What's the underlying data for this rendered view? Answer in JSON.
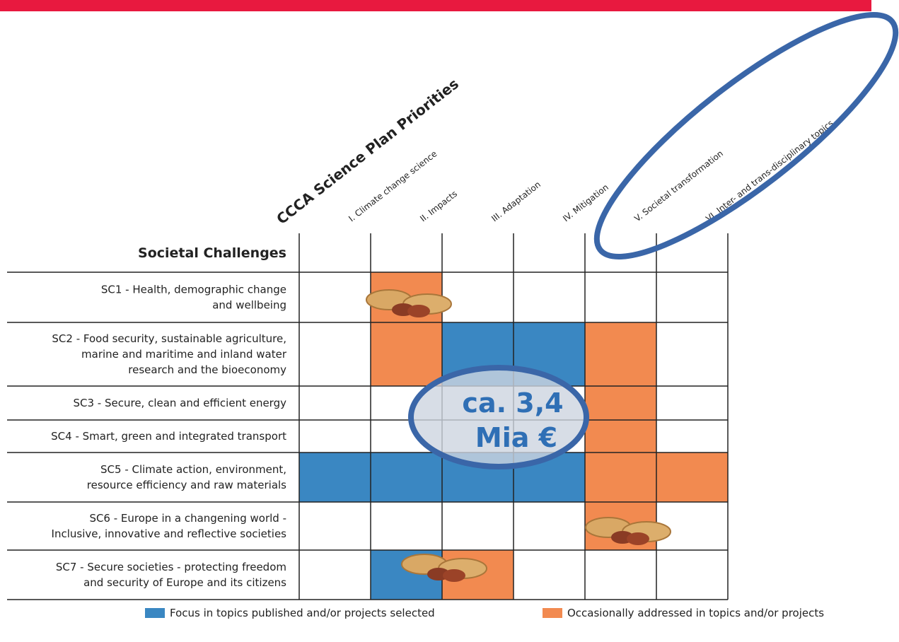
{
  "matrix": {
    "title": "CCCA Science Plan Priorities",
    "row_header": "Societal Challenges",
    "columns": [
      "I. Climate change science",
      "II. Impacts",
      "III. Adaptation",
      "IV. Mitigation",
      "V. Societal transformation",
      "VI. Inter- and trans-disciplinary topics"
    ],
    "rows": [
      {
        "label": [
          "SC1 - Health, demographic change",
          "and wellbeing"
        ],
        "cells": [
          null,
          "#f28a50",
          null,
          null,
          null,
          null
        ]
      },
      {
        "label": [
          "SC2 - Food security, sustainable agriculture,",
          "marine and maritime and inland water",
          "research and the bioeconomy"
        ],
        "cells": [
          null,
          "#f28a50",
          "#3a87c2",
          "#3a87c2",
          "#f28a50",
          null
        ]
      },
      {
        "label": [
          "SC3 - Secure, clean and efficient energy"
        ],
        "cells": [
          null,
          null,
          null,
          null,
          "#f28a50",
          null
        ]
      },
      {
        "label": [
          "SC4 - Smart, green and integrated transport"
        ],
        "cells": [
          null,
          null,
          null,
          null,
          "#f28a50",
          null
        ]
      },
      {
        "label": [
          "SC5 - Climate action, environment,",
          "resource efficiency and raw materials"
        ],
        "cells": [
          "#3a87c2",
          "#3a87c2",
          "#3a87c2",
          "#3a87c2",
          "#f28a50",
          "#f28a50"
        ]
      },
      {
        "label": [
          "SC6 - Europe in a changening world -",
          "Inclusive, innovative and reflective societies"
        ],
        "cells": [
          null,
          null,
          null,
          null,
          "#f28a50",
          null
        ]
      },
      {
        "label": [
          "SC7 - Secure societies - protecting freedom",
          "and security of Europe and its citizens"
        ],
        "cells": [
          null,
          "#3a87c2",
          "#f28a50",
          null,
          null,
          null
        ]
      }
    ]
  },
  "callout": {
    "lines": [
      "ca. 3,4",
      "Mia €"
    ]
  },
  "legend": [
    {
      "label": "Focus in topics published and/or projects selected",
      "color": "#3a87c2"
    },
    {
      "label": "Occasionally addressed in topics and/or projects",
      "color": "#f28a50"
    }
  ]
}
